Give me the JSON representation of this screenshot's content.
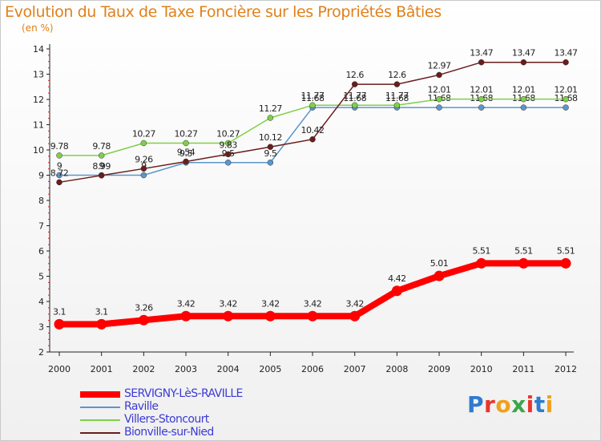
{
  "header": {
    "title": "Evolution du Taux de Taxe Foncière sur les Propriétés Bâties",
    "unit": "(en %)"
  },
  "logo": {
    "letters": [
      "P",
      "r",
      "o",
      "x",
      "i",
      "t",
      "i"
    ],
    "colors": [
      "#2e7bd0",
      "#e8362c",
      "#f0a11b",
      "#3aa64a",
      "#e8362c",
      "#2e7bd0",
      "#f0a11b"
    ]
  },
  "chart_data": {
    "type": "line",
    "x": [
      "2000",
      "2001",
      "2002",
      "2003",
      "2004",
      "2005",
      "2006",
      "2007",
      "2008",
      "2009",
      "2010",
      "2011",
      "2012"
    ],
    "ylim": [
      2,
      14
    ],
    "yticks": [
      "2",
      "3",
      "4",
      "5",
      "6",
      "7",
      "8",
      "9",
      "10",
      "11",
      "12",
      "13",
      "14"
    ],
    "grid": false,
    "legend_position": "bottom-left",
    "series": [
      {
        "name": "Raville",
        "color": "#5b97cb",
        "values": [
          9,
          9,
          9,
          9.5,
          9.5,
          9.5,
          11.68,
          11.68,
          11.68,
          11.68,
          11.68,
          11.68,
          11.68
        ],
        "labels": [
          "9",
          "9",
          "9",
          "9.5",
          "9.5",
          "9.5",
          "11.68",
          "11.68",
          "11.68",
          "11.68",
          "11.68",
          "11.68",
          "11.68"
        ]
      },
      {
        "name": "Villers-Stoncourt",
        "color": "#7fd047",
        "values": [
          9.78,
          9.78,
          10.27,
          10.27,
          10.27,
          11.27,
          11.77,
          11.77,
          11.77,
          12.01,
          12.01,
          12.01,
          12.01
        ],
        "labels": [
          "9.78",
          "9.78",
          "10.27",
          "10.27",
          "10.27",
          "11.27",
          "11.77",
          "11.77",
          "11.77",
          "12.01",
          "12.01",
          "12.01",
          "12.01"
        ]
      },
      {
        "name": "Bionville-sur-Nied",
        "color": "#6b1c1c",
        "values": [
          8.72,
          8.99,
          9.26,
          9.54,
          9.83,
          10.12,
          10.42,
          12.6,
          12.6,
          12.97,
          13.47,
          13.47,
          13.47
        ],
        "labels": [
          "8.72",
          "8.99",
          "9.26",
          "9.54",
          "9.83",
          "10.12",
          "10.42",
          "12.6",
          "12.6",
          "12.97",
          "13.47",
          "13.47",
          "13.47"
        ]
      },
      {
        "name": "SERVIGNY-LèS-RAVILLE",
        "color": "#ff0000",
        "values": [
          3.1,
          3.1,
          3.26,
          3.42,
          3.42,
          3.42,
          3.42,
          3.42,
          4.42,
          5.01,
          5.51,
          5.51,
          5.51
        ],
        "labels": [
          "3.1",
          "3.1",
          "3.26",
          "3.42",
          "3.42",
          "3.42",
          "3.42",
          "3.42",
          "4.42",
          "5.01",
          "5.51",
          "5.51",
          "5.51"
        ]
      }
    ],
    "legend_order": [
      "SERVIGNY-LèS-RAVILLE",
      "Raville",
      "Villers-Stoncourt",
      "Bionville-sur-Nied"
    ]
  }
}
